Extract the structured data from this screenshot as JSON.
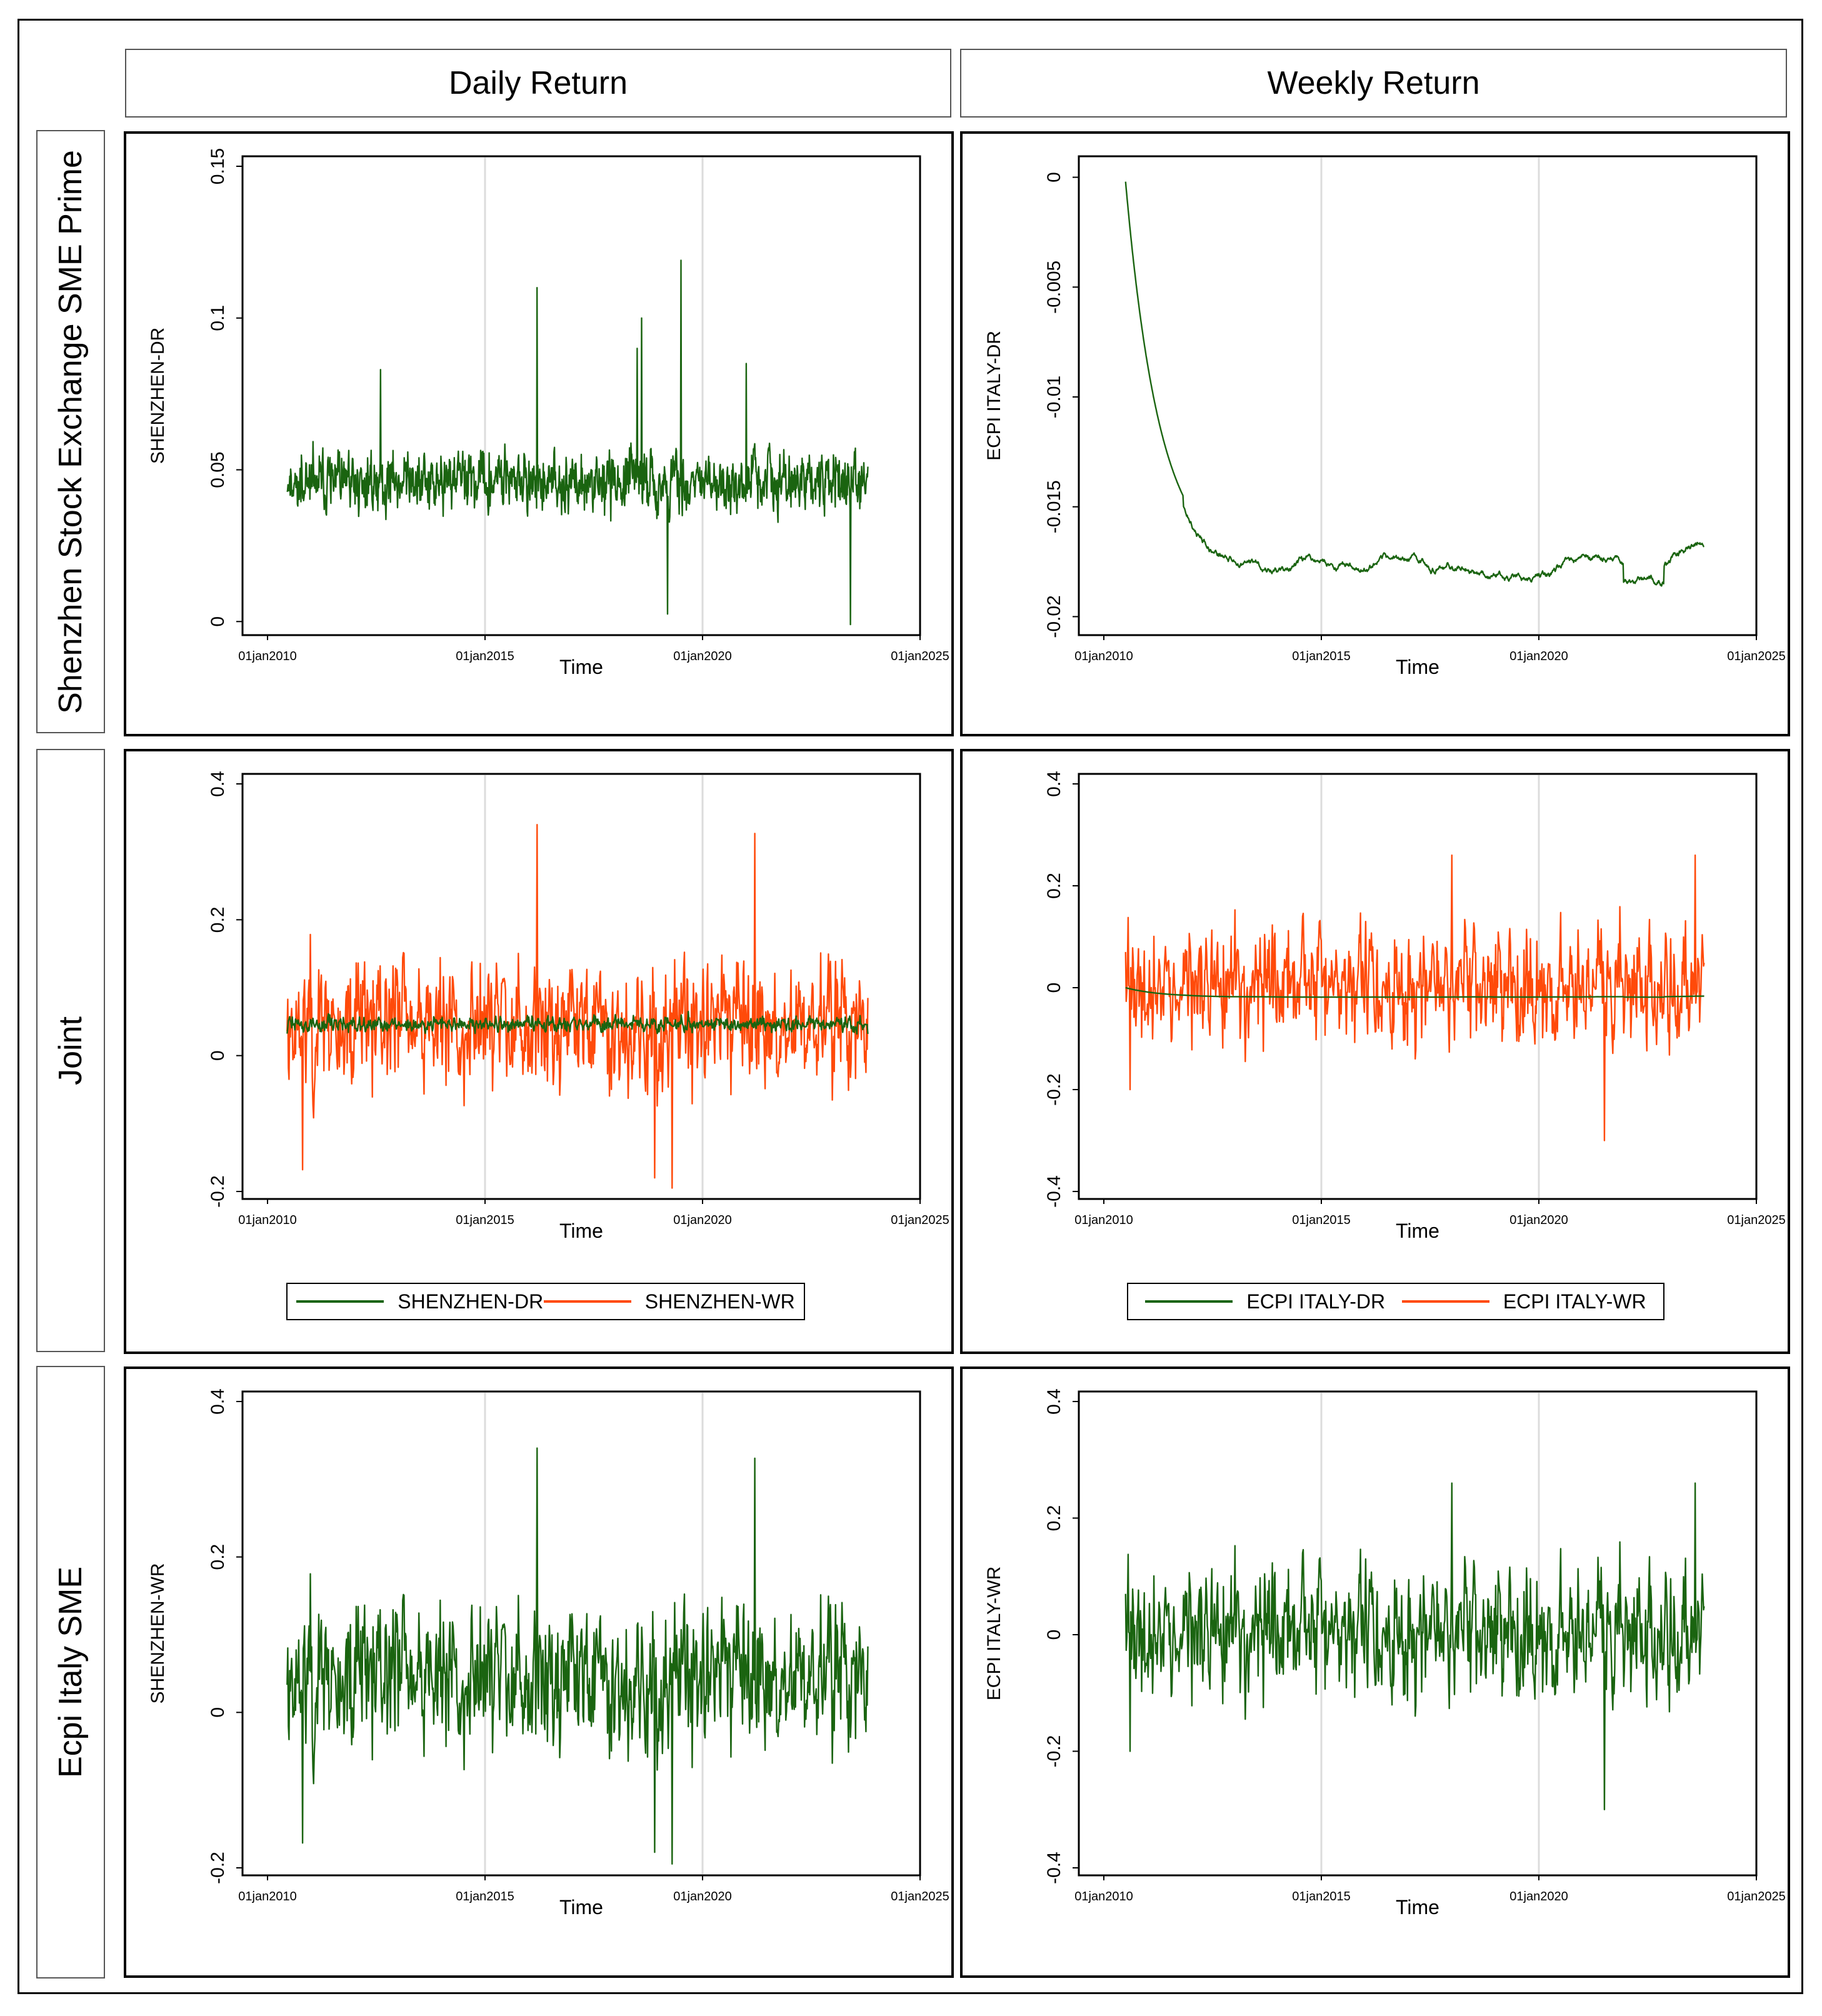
{
  "columns": [
    "Daily Return",
    "Weekly Return"
  ],
  "rows": [
    "Shenzhen Stock Exchange SME Prime",
    "Joint",
    "Ecpi Italy SME"
  ],
  "colors": {
    "green": "#1a6410",
    "orange": "#ff4a0a",
    "grid": "#dcdcdc"
  },
  "chart_data": [
    {
      "id": "p11",
      "type": "line",
      "title": "",
      "xlabel": "Time",
      "ylabel": "SHENZHEN-DR",
      "xticks": [
        "01jan2010",
        "01jan2015",
        "01jan2020",
        "01jan2025"
      ],
      "xlim": [
        2010,
        2025
      ],
      "ylim": [
        -0.002,
        0.15
      ],
      "yticks": [
        0,
        0.05,
        0.1,
        0.15
      ],
      "ytick_labels": [
        "0",
        "0.05",
        "0.1",
        "0.15"
      ],
      "series": [
        {
          "name": "SHENZHEN-DR",
          "color": "#1a6410",
          "x_start": 2010.45,
          "x_end": 2023.8,
          "n": 1300,
          "sim": {
            "type": "noise",
            "base": 0.046,
            "amp": 0.0075,
            "seed": 11,
            "clip": [
              0.012,
              0.078
            ]
          }
        }
      ],
      "spikes": [
        [
          2016.2,
          0.11
        ],
        [
          2019.5,
          0.119
        ],
        [
          2018.6,
          0.1
        ],
        [
          2019.2,
          0.0025
        ],
        [
          2023.4,
          -0.001
        ],
        [
          2018.5,
          0.09
        ],
        [
          2012.6,
          0.083
        ],
        [
          2021.0,
          0.085
        ]
      ],
      "legend": []
    },
    {
      "id": "p12",
      "type": "line",
      "title": "",
      "xlabel": "Time",
      "ylabel": "ECPI ITALY-DR",
      "xticks": [
        "01jan2010",
        "01jan2015",
        "01jan2020",
        "01jan2025"
      ],
      "xlim": [
        2010,
        2025
      ],
      "ylim": [
        -0.0205,
        0.0005
      ],
      "yticks": [
        0,
        -0.005,
        -0.01,
        -0.015,
        -0.02
      ],
      "ytick_labels": [
        "0",
        "-0.005",
        "-0.01",
        "-0.015",
        "-0.02"
      ],
      "series": [
        {
          "name": "ECPI ITALY-DR",
          "color": "#1a6410",
          "x_start": 2010.5,
          "x_end": 2023.8,
          "n": 1100,
          "sim": {
            "type": "decay",
            "start": -0.0002,
            "level": -0.0178,
            "rate": 3.2,
            "amp": 0.00055,
            "seed": 5
          }
        }
      ],
      "spikes": [],
      "legend": []
    },
    {
      "id": "p21",
      "type": "line",
      "title": "",
      "xlabel": "Time",
      "ylabel": "",
      "xticks": [
        "01jan2010",
        "01jan2015",
        "01jan2020",
        "01jan2025"
      ],
      "xlim": [
        2010,
        2025
      ],
      "ylim": [
        -0.2,
        0.4
      ],
      "yticks": [
        -0.2,
        0,
        0.2,
        0.4
      ],
      "ytick_labels": [
        "-0.2",
        "0",
        "0.2",
        "0.4"
      ],
      "series": [
        {
          "name": "SHENZHEN-WR",
          "color": "#ff4a0a",
          "x_start": 2010.45,
          "x_end": 2023.8,
          "n": 900,
          "sim": {
            "type": "noise",
            "base": 0.045,
            "amp": 0.075,
            "seed": 23,
            "clip": [
              -0.19,
              0.27
            ]
          }
        },
        {
          "name": "SHENZHEN-DR",
          "color": "#1a6410",
          "x_start": 2010.45,
          "x_end": 2023.8,
          "n": 900,
          "sim": {
            "type": "noise",
            "base": 0.046,
            "amp": 0.009,
            "seed": 31,
            "clip": [
              0.02,
              0.07
            ]
          }
        }
      ],
      "spikes": [
        [
          2016.2,
          0.34
        ],
        [
          2021.2,
          0.327
        ],
        [
          2019.3,
          -0.195
        ],
        [
          2018.9,
          -0.18
        ],
        [
          2010.8,
          -0.168
        ]
      ],
      "legend": [
        "SHENZHEN-DR",
        "SHENZHEN-WR"
      ]
    },
    {
      "id": "p22",
      "type": "line",
      "title": "",
      "xlabel": "Time",
      "ylabel": "",
      "xticks": [
        "01jan2010",
        "01jan2015",
        "01jan2020",
        "01jan2025"
      ],
      "xlim": [
        2010,
        2025
      ],
      "ylim": [
        -0.4,
        0.4
      ],
      "yticks": [
        -0.4,
        -0.2,
        0,
        0.2,
        0.4
      ],
      "ytick_labels": [
        "-0.4",
        "-0.2",
        "0",
        "0.2",
        "0.4"
      ],
      "series": [
        {
          "name": "ECPI ITALY-WR",
          "color": "#ff4a0a",
          "x_start": 2010.5,
          "x_end": 2023.8,
          "n": 900,
          "sim": {
            "type": "noise",
            "base": 0.0,
            "amp": 0.085,
            "seed": 41,
            "clip": [
              -0.26,
              0.22
            ]
          }
        },
        {
          "name": "ECPI ITALY-DR",
          "color": "#1a6410",
          "x_start": 2010.5,
          "x_end": 2023.8,
          "n": 400,
          "sim": {
            "type": "decay",
            "start": 0.0,
            "level": -0.018,
            "rate": 3.2,
            "amp": 0.0005,
            "seed": 5
          }
        }
      ],
      "spikes": [
        [
          2018.0,
          0.26
        ],
        [
          2023.6,
          0.26
        ],
        [
          2021.5,
          -0.3
        ],
        [
          2010.6,
          -0.2
        ]
      ],
      "legend": [
        "ECPI ITALY-DR",
        "ECPI ITALY-WR"
      ]
    },
    {
      "id": "p31",
      "type": "line",
      "title": "",
      "xlabel": "Time",
      "ylabel": "SHENZHEN-WR",
      "xticks": [
        "01jan2010",
        "01jan2015",
        "01jan2020",
        "01jan2025"
      ],
      "xlim": [
        2010,
        2025
      ],
      "ylim": [
        -0.2,
        0.4
      ],
      "yticks": [
        -0.2,
        0,
        0.2,
        0.4
      ],
      "ytick_labels": [
        "-0.2",
        "0",
        "0.2",
        "0.4"
      ],
      "series": [
        {
          "name": "SHENZHEN-WR",
          "color": "#1a6410",
          "x_start": 2010.45,
          "x_end": 2023.8,
          "n": 900,
          "sim": {
            "type": "noise",
            "base": 0.045,
            "amp": 0.075,
            "seed": 23,
            "clip": [
              -0.19,
              0.27
            ]
          }
        }
      ],
      "spikes": [
        [
          2016.2,
          0.34
        ],
        [
          2021.2,
          0.327
        ],
        [
          2019.3,
          -0.195
        ],
        [
          2018.9,
          -0.18
        ],
        [
          2010.8,
          -0.168
        ]
      ],
      "legend": []
    },
    {
      "id": "p32",
      "type": "line",
      "title": "",
      "xlabel": "Time",
      "ylabel": "ECPI ITALY-WR",
      "xticks": [
        "01jan2010",
        "01jan2015",
        "01jan2020",
        "01jan2025"
      ],
      "xlim": [
        2010,
        2025
      ],
      "ylim": [
        -0.4,
        0.4
      ],
      "yticks": [
        -0.4,
        -0.2,
        0,
        0.2,
        0.4
      ],
      "ytick_labels": [
        "-0.4",
        "-0.2",
        "0",
        "0.2",
        "0.4"
      ],
      "series": [
        {
          "name": "ECPI ITALY-WR",
          "color": "#1a6410",
          "x_start": 2010.5,
          "x_end": 2023.8,
          "n": 900,
          "sim": {
            "type": "noise",
            "base": 0.0,
            "amp": 0.085,
            "seed": 41,
            "clip": [
              -0.26,
              0.22
            ]
          }
        }
      ],
      "spikes": [
        [
          2018.0,
          0.26
        ],
        [
          2023.6,
          0.26
        ],
        [
          2021.5,
          -0.3
        ],
        [
          2010.6,
          -0.2
        ]
      ],
      "legend": []
    }
  ]
}
